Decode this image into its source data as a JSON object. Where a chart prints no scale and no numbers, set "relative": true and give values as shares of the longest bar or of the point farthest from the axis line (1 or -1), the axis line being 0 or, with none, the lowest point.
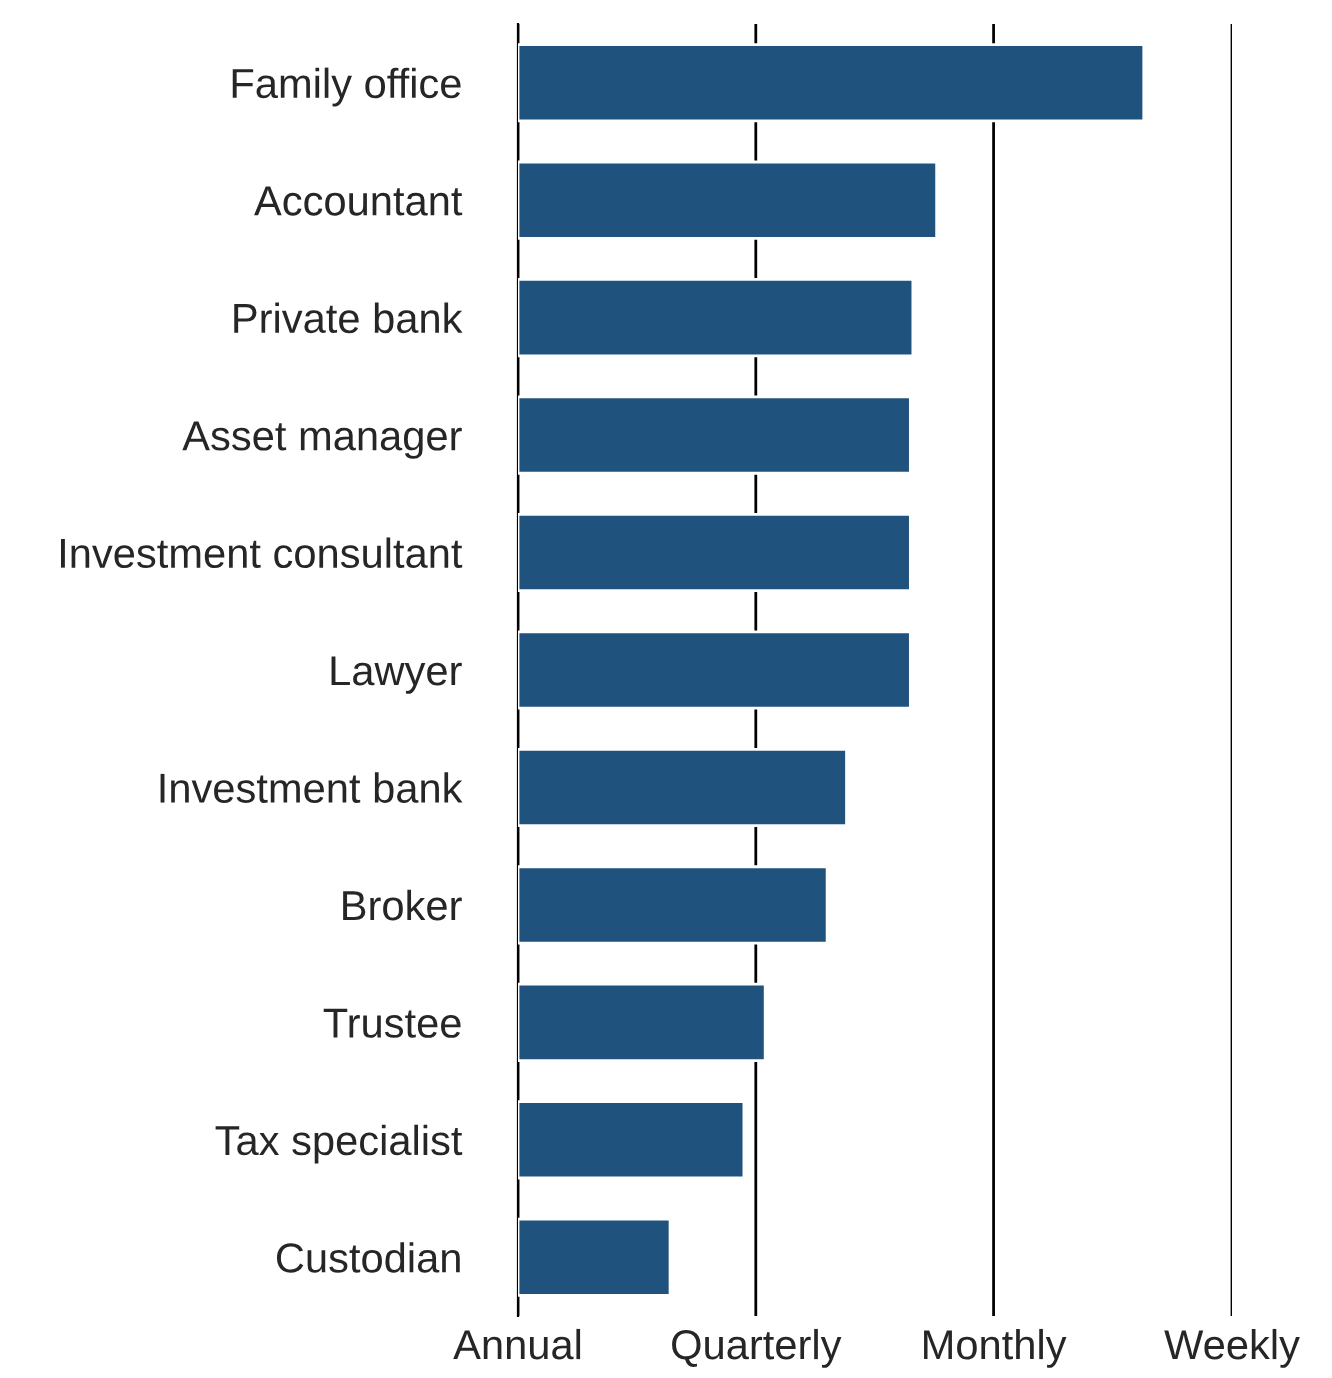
{
  "chart_data": {
    "type": "bar",
    "orientation": "horizontal",
    "relative": true,
    "categories": [
      "Family office",
      "Accountant",
      "Private bank",
      "Asset manager",
      "Investment consultant",
      "Lawyer",
      "Investment bank",
      "Broker",
      "Trustee",
      "Tax specialist",
      "Custodian"
    ],
    "values": [
      1,
      0.669,
      0.631,
      0.627,
      0.627,
      0.627,
      0.525,
      0.494,
      0.395,
      0.361,
      0.243
    ],
    "color": "#1f527c",
    "ref_lines": [
      {
        "axis": "x",
        "value": 0,
        "label": "Annual",
        "color": "#000000"
      },
      {
        "axis": "x",
        "value": 0.38,
        "label": "Quarterly",
        "color": "#000000"
      },
      {
        "axis": "x",
        "value": 0.76,
        "label": "Monthly",
        "color": "#000000"
      },
      {
        "axis": "x",
        "value": 1.141,
        "label": "Weekly",
        "color": "#000000"
      }
    ]
  }
}
